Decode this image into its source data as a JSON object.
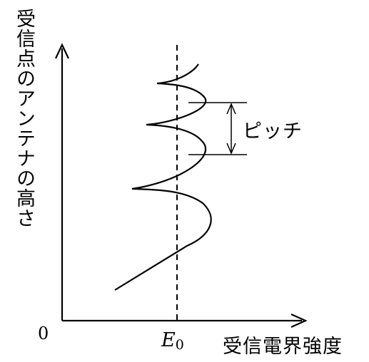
{
  "labels": {
    "y_axis": "受信点のアンテナの高さ",
    "x_axis": "受信電界強度",
    "origin": "0",
    "e0_symbol": "E",
    "e0_subscript": "0",
    "pitch": "ピッチ"
  }
}
